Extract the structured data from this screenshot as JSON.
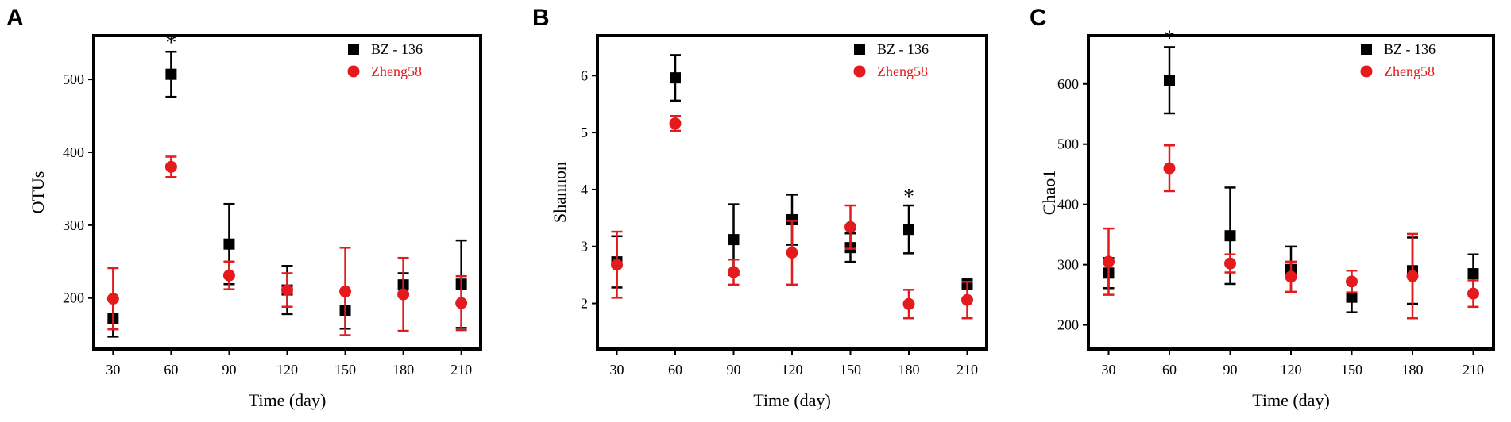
{
  "colors": {
    "bz136": "#000000",
    "zheng58": "#e41a1c"
  },
  "chart_data": [
    {
      "type": "scatter",
      "panel": "A",
      "xlabel": "Time (day)",
      "ylabel": "OTUs",
      "xlim": [
        20,
        220
      ],
      "ylim": [
        130,
        560
      ],
      "x_ticks": [
        30,
        60,
        90,
        120,
        150,
        180,
        210
      ],
      "y_ticks": [
        200,
        300,
        400,
        500
      ],
      "legend": [
        "BZ - 136",
        "Zheng58"
      ],
      "legend_position": "top-right",
      "series": [
        {
          "name": "BZ - 136",
          "marker": "square",
          "x": [
            30,
            60,
            90,
            120,
            150,
            180,
            210
          ],
          "y": [
            172,
            507,
            274,
            211,
            183,
            218,
            219
          ],
          "err": [
            25,
            31,
            55,
            33,
            25,
            16,
            60
          ]
        },
        {
          "name": "Zheng58",
          "marker": "circle",
          "x": [
            30,
            60,
            90,
            120,
            150,
            180,
            210
          ],
          "y": [
            199,
            380,
            231,
            211,
            209,
            205,
            193
          ],
          "err": [
            42,
            14,
            19,
            23,
            60,
            50,
            37
          ]
        }
      ],
      "annotations": [
        {
          "x": 60,
          "text": "*"
        }
      ]
    },
    {
      "type": "scatter",
      "panel": "B",
      "xlabel": "Time (day)",
      "ylabel": "Shannon",
      "xlim": [
        20,
        220
      ],
      "ylim": [
        1.2,
        6.7
      ],
      "x_ticks": [
        30,
        60,
        90,
        120,
        150,
        180,
        210
      ],
      "y_ticks": [
        2,
        3,
        4,
        5,
        6
      ],
      "legend": [
        "BZ - 136",
        "Zheng58"
      ],
      "legend_position": "top-right",
      "series": [
        {
          "name": "BZ - 136",
          "marker": "square",
          "x": [
            30,
            60,
            90,
            120,
            150,
            180,
            210
          ],
          "y": [
            2.73,
            5.96,
            3.12,
            3.47,
            2.98,
            3.3,
            2.34
          ],
          "err": [
            0.45,
            0.4,
            0.62,
            0.44,
            0.25,
            0.42,
            0.08
          ]
        },
        {
          "name": "Zheng58",
          "marker": "circle",
          "x": [
            30,
            60,
            90,
            120,
            150,
            180,
            210
          ],
          "y": [
            2.68,
            5.16,
            2.55,
            2.89,
            3.34,
            1.99,
            2.06
          ],
          "err": [
            0.58,
            0.13,
            0.22,
            0.56,
            0.38,
            0.25,
            0.32
          ]
        }
      ],
      "annotations": [
        {
          "x": 180,
          "text": "*"
        }
      ]
    },
    {
      "type": "scatter",
      "panel": "C",
      "xlabel": "Time (day)",
      "ylabel": "Chao1",
      "xlim": [
        20,
        220
      ],
      "ylim": [
        160,
        680
      ],
      "x_ticks": [
        30,
        60,
        90,
        120,
        150,
        180,
        210
      ],
      "y_ticks": [
        200,
        300,
        400,
        500,
        600
      ],
      "legend": [
        "BZ - 136",
        "Zheng58"
      ],
      "legend_position": "top-right",
      "series": [
        {
          "name": "BZ - 136",
          "marker": "square",
          "x": [
            30,
            60,
            90,
            120,
            150,
            180,
            210
          ],
          "y": [
            286,
            606,
            348,
            292,
            246,
            290,
            285
          ],
          "err": [
            25,
            55,
            80,
            38,
            25,
            55,
            32
          ]
        },
        {
          "name": "Zheng58",
          "marker": "circle",
          "x": [
            30,
            60,
            90,
            120,
            150,
            180,
            210
          ],
          "y": [
            305,
            460,
            302,
            280,
            272,
            281,
            252
          ],
          "err": [
            55,
            38,
            15,
            25,
            18,
            70,
            22
          ]
        }
      ],
      "annotations": [
        {
          "x": 60,
          "text": "*"
        }
      ]
    }
  ]
}
